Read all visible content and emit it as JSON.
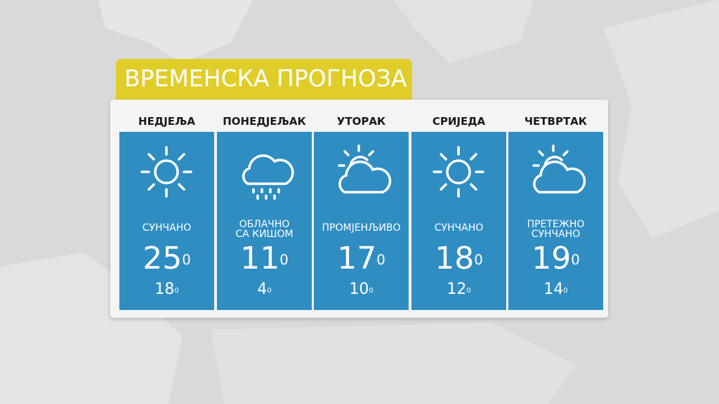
{
  "title": "ВРЕМЕНСКА ПРОГНОЗА",
  "degree_symbol": "0",
  "colors": {
    "banner": "#e0cd2a",
    "tile": "#2f8dc2",
    "panel": "#f4f4f4",
    "background": "#d9d9d9"
  },
  "days": [
    {
      "day": "НЕДЈЕЉА",
      "icon": "sun-icon",
      "condition": [
        "СУНЧАНО"
      ],
      "high": "25",
      "low": "18"
    },
    {
      "day": "ПОНЕДЈЕЉАК",
      "icon": "cloud-rain-icon",
      "condition": [
        "ОБЛАЧНО",
        "СА КИШОМ"
      ],
      "high": "11",
      "low": "4"
    },
    {
      "day": "УТОРАК",
      "icon": "partly-cloudy-icon",
      "condition": [
        "ПРОМЈЕНЉИВО"
      ],
      "high": "17",
      "low": "10"
    },
    {
      "day": "СРИЈЕДА",
      "icon": "sun-icon",
      "condition": [
        "СУНЧАНО"
      ],
      "high": "18",
      "low": "12"
    },
    {
      "day": "ЧЕТВРТАК",
      "icon": "partly-cloudy-icon",
      "condition": [
        "ПРЕТЕЖНО",
        "СУНЧАНО"
      ],
      "high": "19",
      "low": "14"
    }
  ]
}
